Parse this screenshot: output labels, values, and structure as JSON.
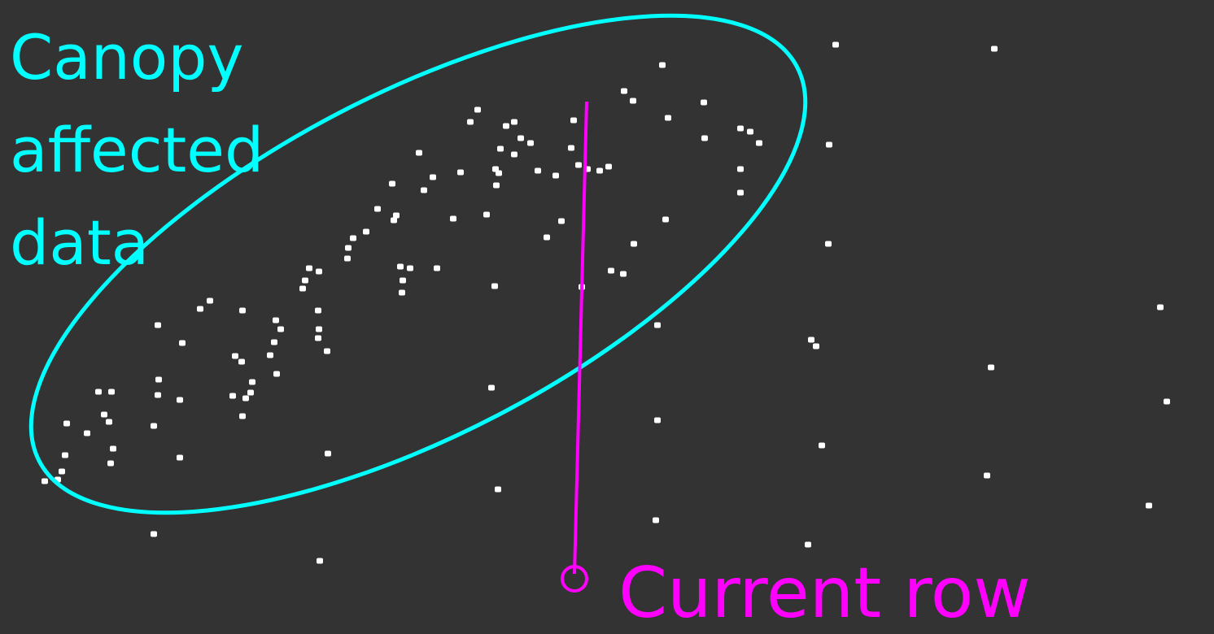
{
  "labels": {
    "canopy_line1": "Canopy",
    "canopy_line2": "affected",
    "canopy_line3": "data",
    "current_row": "Current row"
  },
  "colors": {
    "background": "#333333",
    "canopy": "#00FFFF",
    "current_row": "#FF00FF",
    "points": "#FFFFFF"
  }
}
